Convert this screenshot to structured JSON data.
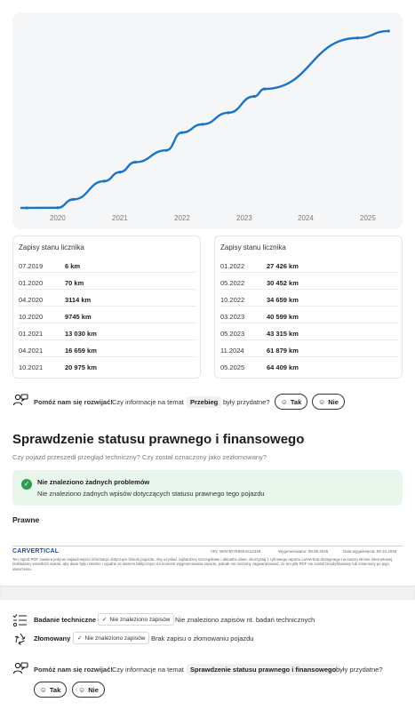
{
  "chart": {
    "x_ticks": [
      "2020",
      "2021",
      "2022",
      "2023",
      "2024",
      "2025"
    ],
    "line_color": "#1a73c7"
  },
  "chart_data": {
    "type": "line",
    "x": [
      "07.2019",
      "01.2020",
      "04.2020",
      "10.2020",
      "01.2021",
      "04.2021",
      "10.2021",
      "01.2022",
      "05.2022",
      "10.2022",
      "03.2023",
      "05.2023",
      "11.2024",
      "05.2025"
    ],
    "values": [
      6,
      70,
      3114,
      9745,
      13030,
      16659,
      20975,
      27426,
      30452,
      34659,
      40599,
      43315,
      61879,
      64409
    ],
    "xlabel": "",
    "ylabel": ""
  },
  "table_left": {
    "header": "Zapisy stanu licznika",
    "rows": [
      {
        "date": "07.2019",
        "value": "6 km"
      },
      {
        "date": "01.2020",
        "value": "70 km"
      },
      {
        "date": "04.2020",
        "value": "3114 km"
      },
      {
        "date": "10.2020",
        "value": "9745 km"
      },
      {
        "date": "01.2021",
        "value": "13 030 km"
      },
      {
        "date": "04.2021",
        "value": "16 659 km"
      },
      {
        "date": "10.2021",
        "value": "20 975 km"
      }
    ]
  },
  "table_right": {
    "header": "Zapisy stanu licznika",
    "rows": [
      {
        "date": "01.2022",
        "value": "27 426 km"
      },
      {
        "date": "05.2022",
        "value": "30 452 km"
      },
      {
        "date": "10.2022",
        "value": "34 659 km"
      },
      {
        "date": "03.2023",
        "value": "40 599 km"
      },
      {
        "date": "05.2023",
        "value": "43 315 km"
      },
      {
        "date": "11.2024",
        "value": "61 879 km"
      },
      {
        "date": "05.2025",
        "value": "64 409 km"
      }
    ]
  },
  "feedback_1": {
    "bold": "Pomóż nam się rozwijać!",
    "question": "Czy informacje na temat",
    "topic": "Przebieg",
    "suffix": "były przydatne?",
    "yes": "Tak",
    "no": "Nie",
    "smile": "☺"
  },
  "legal": {
    "title": "Sprawdzenie statusu prawnego i finansowego",
    "subtitle": "Czy pojazd przeszedł przegląd techniczny? Czy został oznaczony jako zezłomowany?",
    "ok_icon": "✓",
    "ok_title": "Nie znaleziono żadnych problemów",
    "ok_desc": "Nie znaleziono żadnych wpisów dotyczących statusu prawnego tego pojazdu",
    "section_label": "Prawne"
  },
  "footer": {
    "logo": "CARVERTICAL",
    "vin": "VIN: W0VJD7E85K4412349",
    "generated": "Wygenerowano: 09.09.2025",
    "expires": "Data wygaśnięcia: 09.10.2025",
    "fine_print": "Ten raport PDF zawiera jedynie najważniejsze informacje dotyczące historii pojazdu. Aby uzyskać najbardziej szczegółowe i aktualne dane, skorzystaj z cyfrowego raportu carVertical dostępnego na naszej stronie internetowej. Dokładamy wszelkich starań, aby dane były rzetelne i zgodne ze stanem faktycznym na moment wygenerowania raportu, jednak nie możemy zagwarantować, że ten plik PDF nie został zmodyfikowany lub zmieniony po jego utworzeniu."
  },
  "checks": [
    {
      "label": "Badanie techniczne",
      "chip": "Nie znaleziono zapisów",
      "desc": "Nie znaleziono zapisów nt. badań technicznych",
      "check": "✓"
    },
    {
      "label": "Złomowany",
      "chip": "Nie znaleziono zapisów",
      "desc": "Brak zapisu o złomowaniu pojazdu",
      "check": "✓"
    }
  ],
  "feedback_2": {
    "bold": "Pomóż nam się rozwijać!",
    "question": "Czy informacje na temat",
    "topic": "Sprawdzenie statusu prawnego i finansowego",
    "suffix": "były przydatne?",
    "yes": "Tak",
    "no": "Nie",
    "smile": "☺"
  }
}
